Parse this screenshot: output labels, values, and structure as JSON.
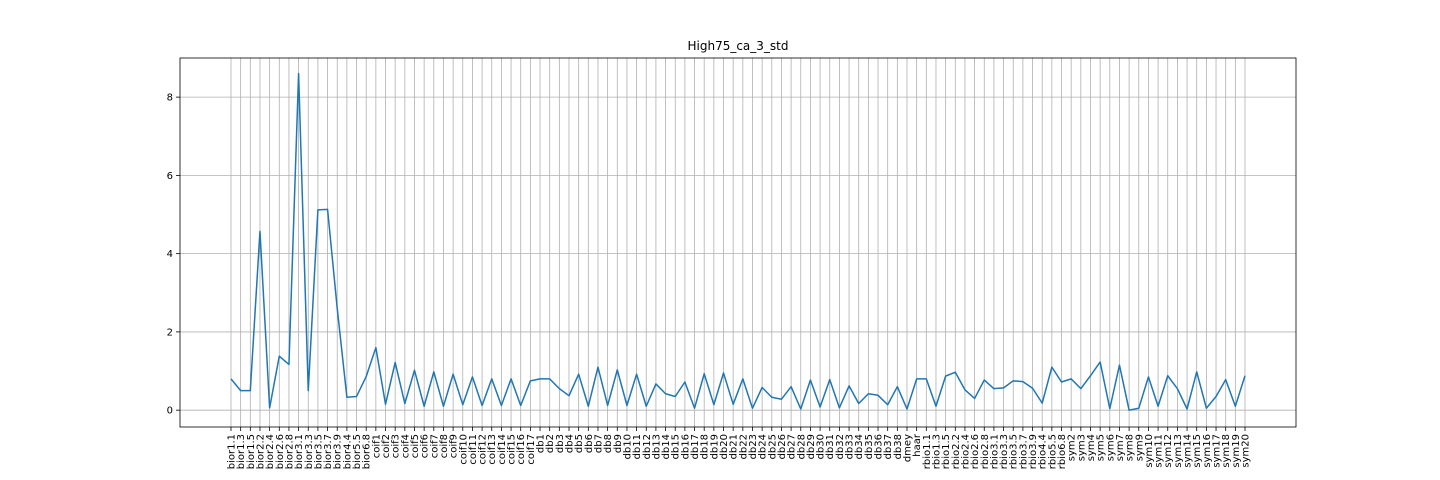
{
  "chart_data": {
    "type": "line",
    "title": "High75_ca_3_std",
    "xlabel": "",
    "ylabel": "",
    "ylim": [
      -0.43,
      9.0
    ],
    "yticks": [
      0,
      2,
      4,
      6,
      8
    ],
    "grid": true,
    "color": "#1f77b4",
    "categories": [
      "bior1.1",
      "bior1.3",
      "bior1.5",
      "bior2.2",
      "bior2.4",
      "bior2.6",
      "bior2.8",
      "bior3.1",
      "bior3.3",
      "bior3.5",
      "bior3.7",
      "bior3.9",
      "bior4.4",
      "bior5.5",
      "bior6.8",
      "coif1",
      "coif2",
      "coif3",
      "coif4",
      "coif5",
      "coif6",
      "coif7",
      "coif8",
      "coif9",
      "coif10",
      "coif11",
      "coif12",
      "coif13",
      "coif14",
      "coif15",
      "coif16",
      "coif17",
      "db1",
      "db2",
      "db3",
      "db4",
      "db5",
      "db6",
      "db7",
      "db8",
      "db9",
      "db10",
      "db11",
      "db12",
      "db13",
      "db14",
      "db15",
      "db16",
      "db17",
      "db18",
      "db19",
      "db20",
      "db21",
      "db22",
      "db23",
      "db24",
      "db25",
      "db26",
      "db27",
      "db28",
      "db29",
      "db30",
      "db31",
      "db32",
      "db33",
      "db34",
      "db35",
      "db36",
      "db37",
      "db38",
      "dmey",
      "haar",
      "rbio1.1",
      "rbio1.3",
      "rbio1.5",
      "rbio2.2",
      "rbio2.4",
      "rbio2.6",
      "rbio2.8",
      "rbio3.1",
      "rbio3.3",
      "rbio3.5",
      "rbio3.7",
      "rbio3.9",
      "rbio4.4",
      "rbio5.5",
      "rbio6.8",
      "sym2",
      "sym3",
      "sym4",
      "sym5",
      "sym6",
      "sym7",
      "sym8",
      "sym9",
      "sym10",
      "sym11",
      "sym12",
      "sym13",
      "sym14",
      "sym15",
      "sym16",
      "sym17",
      "sym18",
      "sym19",
      "sym20"
    ],
    "values": [
      0.8,
      0.5,
      0.5,
      4.57,
      0.06,
      1.38,
      1.17,
      8.6,
      0.5,
      5.12,
      5.13,
      2.6,
      0.33,
      0.35,
      0.86,
      1.6,
      0.15,
      1.22,
      0.17,
      1.02,
      0.1,
      0.98,
      0.1,
      0.92,
      0.14,
      0.85,
      0.12,
      0.8,
      0.12,
      0.8,
      0.12,
      0.75,
      0.8,
      0.8,
      0.55,
      0.37,
      0.92,
      0.1,
      1.1,
      0.12,
      1.03,
      0.12,
      0.92,
      0.1,
      0.67,
      0.42,
      0.35,
      0.72,
      0.05,
      0.93,
      0.14,
      0.95,
      0.15,
      0.8,
      0.05,
      0.58,
      0.33,
      0.28,
      0.6,
      0.03,
      0.77,
      0.08,
      0.78,
      0.06,
      0.62,
      0.17,
      0.42,
      0.38,
      0.14,
      0.6,
      0.03,
      0.8,
      0.8,
      0.1,
      0.87,
      0.97,
      0.52,
      0.3,
      0.77,
      0.55,
      0.57,
      0.75,
      0.73,
      0.56,
      0.18,
      1.1,
      0.72,
      0.8,
      0.55,
      0.88,
      1.23,
      0.04,
      1.15,
      0.0,
      0.05,
      0.85,
      0.1,
      0.88,
      0.55,
      0.03,
      0.98,
      0.05,
      0.35,
      0.78,
      0.1,
      0.88
    ]
  }
}
